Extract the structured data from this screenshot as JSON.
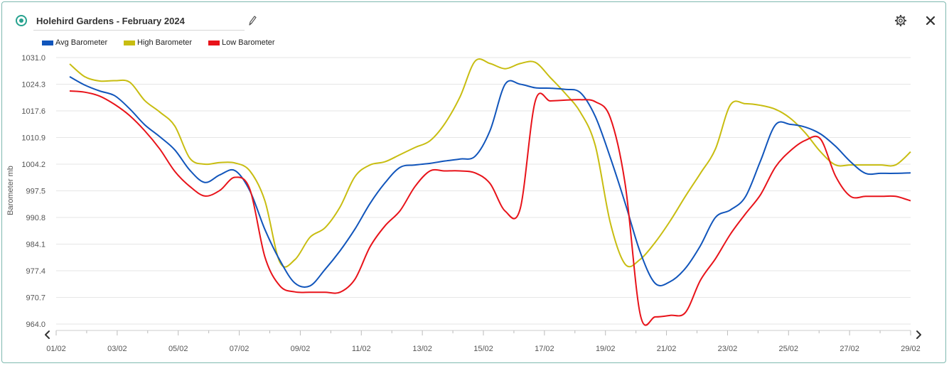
{
  "widget": {
    "title": "Holehird Gardens - February 2024",
    "status_color": "#27a28f",
    "icons": {
      "edit": "pencil-icon",
      "settings": "gear-icon",
      "close": "close-icon",
      "prev": "chevron-left-icon",
      "next": "chevron-right-icon"
    }
  },
  "chart_data": {
    "type": "line",
    "ylabel": "Barometer mb",
    "y_ticks": [
      "964.0",
      "970.7",
      "977.4",
      "984.1",
      "990.8",
      "997.5",
      "1004.2",
      "1010.9",
      "1017.6",
      "1024.3",
      "1031.0"
    ],
    "ylim": [
      964.0,
      1031.0
    ],
    "x_ticks": [
      "01/02",
      "03/02",
      "05/02",
      "07/02",
      "09/02",
      "11/02",
      "13/02",
      "15/02",
      "17/02",
      "19/02",
      "21/02",
      "23/02",
      "25/02",
      "27/02",
      "29/02"
    ],
    "x": [
      "01/02",
      "01/02",
      "02/02",
      "02/02",
      "03/02",
      "03/02",
      "04/02",
      "04/02",
      "05/02",
      "05/02",
      "06/02",
      "06/02",
      "07/02",
      "07/02",
      "08/02",
      "08/02",
      "09/02",
      "09/02",
      "10/02",
      "10/02",
      "11/02",
      "11/02",
      "12/02",
      "12/02",
      "13/02",
      "13/02",
      "14/02",
      "14/02",
      "15/02",
      "15/02",
      "16/02",
      "16/02",
      "17/02",
      "17/02",
      "18/02",
      "18/02",
      "19/02",
      "19/02",
      "20/02",
      "20/02",
      "21/02",
      "21/02",
      "22/02",
      "22/02",
      "23/02",
      "23/02",
      "24/02",
      "24/02",
      "25/02",
      "25/02",
      "26/02",
      "26/02",
      "27/02",
      "27/02",
      "28/02",
      "28/02",
      "29/02"
    ],
    "x_labels_note": "",
    "grid": true,
    "legend_position": "top-left",
    "series": [
      {
        "name": "Avg Barometer",
        "color": "#1155bb",
        "values": [
          1026.2,
          1024.1,
          1022.6,
          1021.4,
          1018.1,
          1014.1,
          1011.1,
          1007.8,
          1002.7,
          999.6,
          1001.5,
          1002.6,
          997.5,
          987.8,
          980.0,
          974.3,
          973.6,
          977.7,
          982.4,
          987.9,
          994.3,
          999.5,
          1003.4,
          1004.0,
          1004.4,
          1005.0,
          1005.5,
          1006.2,
          1012.7,
          1024.3,
          1024.3,
          1023.4,
          1023.3,
          1023.0,
          1022.2,
          1016.2,
          1005.9,
          994.3,
          982.0,
          974.2,
          974.7,
          978.0,
          983.7,
          990.8,
          992.7,
          996.0,
          1005.0,
          1014.1,
          1014.2,
          1013.5,
          1011.8,
          1008.7,
          1004.8,
          1001.9,
          1001.9,
          1001.9,
          1002.0
        ]
      },
      {
        "name": "High Barometer",
        "color": "#c8bd11",
        "values": [
          1029.4,
          1026.2,
          1025.1,
          1025.2,
          1024.8,
          1020.2,
          1017.3,
          1013.8,
          1005.7,
          1004.2,
          1004.6,
          1004.5,
          1002.5,
          995.0,
          979.5,
          980.2,
          985.8,
          988.2,
          993.4,
          1001.1,
          1004.0,
          1004.8,
          1006.6,
          1008.4,
          1010.1,
          1014.5,
          1021.2,
          1030.1,
          1029.5,
          1028.2,
          1029.5,
          1029.8,
          1026.0,
          1022.0,
          1017.3,
          1008.9,
          989.5,
          979.0,
          980.3,
          984.6,
          990.0,
          996.1,
          1001.9,
          1008.0,
          1019.1,
          1019.4,
          1019.0,
          1018.0,
          1015.7,
          1012.0,
          1007.3,
          1004.0,
          1004.0,
          1004.0,
          1004.0,
          1004.0,
          1007.3
        ]
      },
      {
        "name": "Low Barometer",
        "color": "#e8131a",
        "values": [
          1022.6,
          1022.3,
          1021.3,
          1019.2,
          1016.4,
          1012.6,
          1008.0,
          1002.4,
          998.6,
          996.2,
          997.6,
          1000.9,
          997.9,
          980.9,
          973.6,
          972.1,
          972.0,
          972.0,
          972.0,
          975.3,
          983.4,
          988.7,
          992.5,
          998.6,
          1002.5,
          1002.5,
          1002.5,
          1002.0,
          999.3,
          992.4,
          993.0,
          1020.0,
          1020.1,
          1020.3,
          1020.4,
          1019.9,
          1015.9,
          999.0,
          966.3,
          965.8,
          966.2,
          966.9,
          975.0,
          980.4,
          986.6,
          991.7,
          996.5,
          1003.5,
          1007.6,
          1010.2,
          1010.5,
          1001.2,
          996.1,
          996.1,
          996.1,
          996.1,
          995.0
        ]
      }
    ]
  }
}
